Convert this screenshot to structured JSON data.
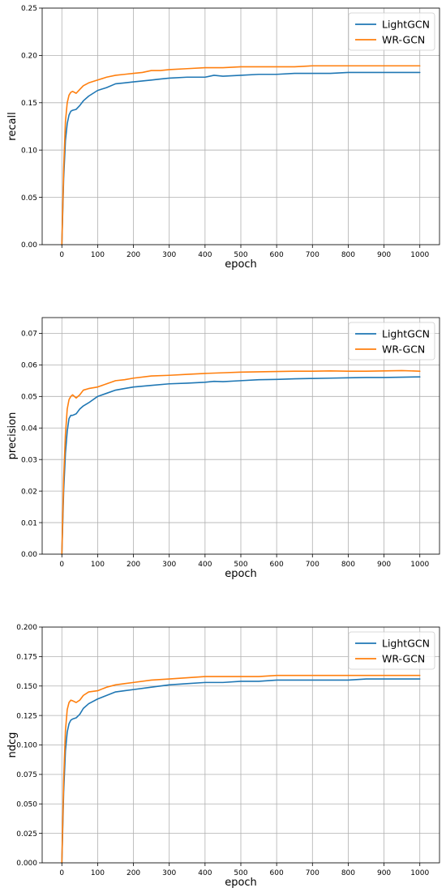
{
  "chart_data": [
    {
      "type": "line",
      "xlabel": "epoch",
      "ylabel": "recall",
      "xlim": [
        -55,
        1055
      ],
      "ylim": [
        0,
        0.25
      ],
      "xticks": [
        0,
        100,
        200,
        300,
        400,
        500,
        600,
        700,
        800,
        900,
        1000
      ],
      "xtick_labels": [
        "0",
        "100",
        "200",
        "300",
        "400",
        "500",
        "600",
        "700",
        "800",
        "900",
        "1000"
      ],
      "yticks": [
        0,
        0.05,
        0.1,
        0.15,
        0.2,
        0.25
      ],
      "ytick_labels": [
        "0.00",
        "0.05",
        "0.10",
        "0.15",
        "0.20",
        "0.25"
      ],
      "grid": true,
      "legend_position": "top-right",
      "series": [
        {
          "name": "LightGCN",
          "color": "#1f77b4",
          "x": [
            0,
            5,
            10,
            15,
            20,
            25,
            30,
            40,
            50,
            60,
            75,
            100,
            125,
            150,
            175,
            200,
            225,
            250,
            275,
            300,
            350,
            400,
            425,
            450,
            500,
            550,
            600,
            650,
            700,
            750,
            800,
            850,
            900,
            950,
            1000
          ],
          "y": [
            0.0,
            0.07,
            0.11,
            0.128,
            0.137,
            0.141,
            0.142,
            0.143,
            0.147,
            0.152,
            0.157,
            0.163,
            0.166,
            0.17,
            0.171,
            0.172,
            0.173,
            0.174,
            0.175,
            0.176,
            0.177,
            0.177,
            0.179,
            0.178,
            0.179,
            0.18,
            0.18,
            0.181,
            0.181,
            0.181,
            0.182,
            0.182,
            0.182,
            0.182,
            0.182
          ]
        },
        {
          "name": "WR-GCN",
          "color": "#ff7f0e",
          "x": [
            0,
            5,
            10,
            15,
            20,
            25,
            30,
            40,
            50,
            60,
            75,
            100,
            125,
            150,
            175,
            200,
            225,
            250,
            275,
            300,
            350,
            400,
            450,
            500,
            550,
            600,
            650,
            700,
            750,
            800,
            850,
            900,
            950,
            1000
          ],
          "y": [
            0.0,
            0.08,
            0.13,
            0.15,
            0.158,
            0.161,
            0.162,
            0.16,
            0.164,
            0.168,
            0.171,
            0.174,
            0.177,
            0.179,
            0.18,
            0.181,
            0.182,
            0.184,
            0.184,
            0.185,
            0.186,
            0.187,
            0.187,
            0.188,
            0.188,
            0.188,
            0.188,
            0.189,
            0.189,
            0.189,
            0.189,
            0.189,
            0.189,
            0.189
          ]
        }
      ]
    },
    {
      "type": "line",
      "xlabel": "epoch",
      "ylabel": "precision",
      "xlim": [
        -55,
        1055
      ],
      "ylim": [
        0,
        0.075
      ],
      "xticks": [
        0,
        100,
        200,
        300,
        400,
        500,
        600,
        700,
        800,
        900,
        1000
      ],
      "xtick_labels": [
        "0",
        "100",
        "200",
        "300",
        "400",
        "500",
        "600",
        "700",
        "800",
        "900",
        "1000"
      ],
      "yticks": [
        0,
        0.01,
        0.02,
        0.03,
        0.04,
        0.05,
        0.06,
        0.07
      ],
      "ytick_labels": [
        "0.00",
        "0.01",
        "0.02",
        "0.03",
        "0.04",
        "0.05",
        "0.06",
        "0.07"
      ],
      "grid": true,
      "legend_position": "top-right",
      "series": [
        {
          "name": "LightGCN",
          "color": "#1f77b4",
          "x": [
            0,
            5,
            10,
            15,
            20,
            25,
            30,
            40,
            50,
            60,
            75,
            100,
            125,
            150,
            175,
            200,
            250,
            300,
            350,
            400,
            425,
            450,
            500,
            550,
            600,
            650,
            700,
            750,
            800,
            850,
            900,
            950,
            1000
          ],
          "y": [
            0.0,
            0.02,
            0.032,
            0.039,
            0.043,
            0.044,
            0.044,
            0.0445,
            0.046,
            0.047,
            0.048,
            0.05,
            0.051,
            0.052,
            0.0525,
            0.053,
            0.0535,
            0.054,
            0.0542,
            0.0545,
            0.0548,
            0.0547,
            0.055,
            0.0553,
            0.0554,
            0.0556,
            0.0557,
            0.0558,
            0.0559,
            0.056,
            0.056,
            0.0561,
            0.0562
          ]
        },
        {
          "name": "WR-GCN",
          "color": "#ff7f0e",
          "x": [
            0,
            5,
            10,
            15,
            20,
            25,
            30,
            40,
            50,
            60,
            75,
            100,
            125,
            150,
            175,
            200,
            250,
            300,
            350,
            400,
            450,
            500,
            550,
            600,
            650,
            700,
            750,
            800,
            850,
            900,
            950,
            1000
          ],
          "y": [
            0.0,
            0.024,
            0.038,
            0.046,
            0.049,
            0.05,
            0.0505,
            0.0495,
            0.0505,
            0.052,
            0.0525,
            0.053,
            0.054,
            0.055,
            0.0553,
            0.0558,
            0.0565,
            0.0567,
            0.057,
            0.0573,
            0.0575,
            0.0577,
            0.0578,
            0.0579,
            0.058,
            0.058,
            0.0581,
            0.058,
            0.058,
            0.0581,
            0.0582,
            0.058
          ]
        }
      ]
    },
    {
      "type": "line",
      "xlabel": "epoch",
      "ylabel": "ndcg",
      "xlim": [
        -55,
        1055
      ],
      "ylim": [
        0,
        0.2
      ],
      "xticks": [
        0,
        100,
        200,
        300,
        400,
        500,
        600,
        700,
        800,
        900,
        1000
      ],
      "xtick_labels": [
        "0",
        "100",
        "200",
        "300",
        "400",
        "500",
        "600",
        "700",
        "800",
        "900",
        "1000"
      ],
      "yticks": [
        0,
        0.025,
        0.05,
        0.075,
        0.1,
        0.125,
        0.15,
        0.175,
        0.2
      ],
      "ytick_labels": [
        "0.000",
        "0.025",
        "0.050",
        "0.075",
        "0.100",
        "0.125",
        "0.150",
        "0.175",
        "0.200"
      ],
      "grid": true,
      "legend_position": "top-right",
      "series": [
        {
          "name": "LightGCN",
          "color": "#1f77b4",
          "x": [
            0,
            5,
            10,
            15,
            20,
            25,
            30,
            40,
            50,
            60,
            75,
            100,
            125,
            150,
            175,
            200,
            250,
            300,
            350,
            400,
            450,
            500,
            550,
            600,
            650,
            700,
            750,
            800,
            850,
            900,
            950,
            1000
          ],
          "y": [
            0.0,
            0.06,
            0.095,
            0.111,
            0.118,
            0.121,
            0.122,
            0.123,
            0.126,
            0.131,
            0.135,
            0.139,
            0.142,
            0.145,
            0.146,
            0.147,
            0.149,
            0.151,
            0.152,
            0.153,
            0.153,
            0.154,
            0.154,
            0.155,
            0.155,
            0.155,
            0.155,
            0.155,
            0.156,
            0.156,
            0.156,
            0.156
          ]
        },
        {
          "name": "WR-GCN",
          "color": "#ff7f0e",
          "x": [
            0,
            5,
            10,
            15,
            20,
            25,
            30,
            40,
            50,
            60,
            75,
            100,
            125,
            150,
            175,
            200,
            250,
            300,
            350,
            400,
            450,
            500,
            550,
            600,
            650,
            700,
            750,
            800,
            850,
            900,
            950,
            1000
          ],
          "y": [
            0.0,
            0.07,
            0.112,
            0.13,
            0.136,
            0.138,
            0.1375,
            0.136,
            0.138,
            0.142,
            0.145,
            0.146,
            0.149,
            0.151,
            0.152,
            0.153,
            0.155,
            0.156,
            0.157,
            0.158,
            0.158,
            0.158,
            0.158,
            0.159,
            0.159,
            0.159,
            0.159,
            0.159,
            0.159,
            0.159,
            0.159,
            0.159
          ]
        }
      ]
    }
  ]
}
